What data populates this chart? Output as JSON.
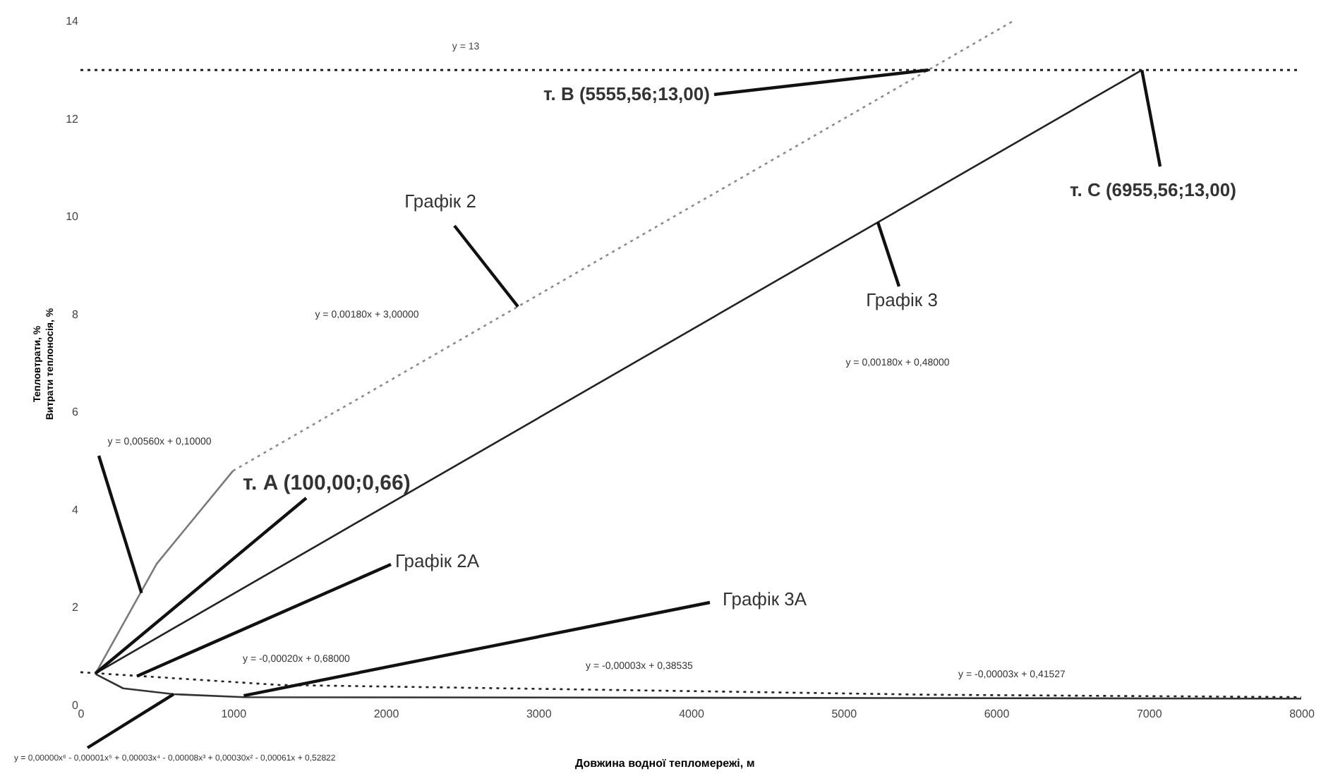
{
  "chart_data": {
    "type": "line",
    "xlabel": "Довжина водної тепломережі, м",
    "ylabel": [
      "Тепловтрати, %",
      "Витрати теплоносія, %"
    ],
    "xlim": [
      0,
      8000
    ],
    "xticks": [
      0,
      1000,
      2000,
      3000,
      4000,
      5000,
      6000,
      7000,
      8000
    ],
    "ylim": [
      0,
      14
    ],
    "yticks": [
      0,
      2,
      4,
      6,
      8,
      10,
      12,
      14
    ],
    "grid": false,
    "marker": "none",
    "series": [
      {
        "color": "#7a7a7a",
        "line_style": "solid",
        "x": [
          100,
          500,
          1000
        ],
        "values": [
          0.66,
          2.9,
          4.8
        ]
      },
      {
        "color": "#8a8a8a",
        "line_style": "dotted",
        "x": [
          1000,
          5555.56,
          6111
        ],
        "values": [
          4.8,
          13,
          14
        ]
      },
      {
        "color": "#222222",
        "line_style": "solid",
        "x": [
          100,
          6955.56
        ],
        "values": [
          0.66,
          13
        ]
      },
      {
        "color": "#222222",
        "line_style": "dotted",
        "x": [
          0,
          100,
          1300,
          5555.56,
          8000
        ],
        "values": [
          0.68,
          0.66,
          0.42,
          0.22,
          0.17
        ]
      },
      {
        "color": "#333333",
        "line_style": "solid",
        "x": [
          100,
          280,
          610,
          1070,
          8000
        ],
        "values": [
          0.64,
          0.35,
          0.23,
          0.17,
          0.14
        ]
      }
    ],
    "ref_lines": [
      {
        "axis": "y",
        "value": 13,
        "label": "y = 13",
        "color": "#222222",
        "line_style": "dotted"
      }
    ],
    "annotations": [
      "y = 0,00180x + 3,00000",
      "y = 0,00180x + 0,48000",
      {
        "text": "y = 0,00560x + 0,10000",
        "x": 400,
        "y": 2.3
      },
      "y = -0,00020x + 0,68000",
      "y = -0,00003x + 0,38535",
      "y = -0,00003x + 0,41527",
      {
        "text": "y = 0,00000x⁶ - 0,00001x⁵ + 0,00003x⁴ - 0,00008x³ + 0,00030x² - 0,00061x + 0,52822",
        "x": 610,
        "y": 0.23
      },
      {
        "text": "Графік 2",
        "x": 2867,
        "y": 8.16
      },
      {
        "text": "т. B (5555,56;13,00)",
        "x": 5555.56,
        "y": 13
      },
      {
        "text": "т. C (6955,56;13,00)",
        "x": 6955.56,
        "y": 13
      },
      {
        "text": "Графік 3",
        "x": 5225,
        "y": 9.89
      },
      {
        "text": "т. A (100,00;0,66)",
        "x": 100,
        "y": 0.66
      },
      {
        "text": "Графік 2А",
        "x": 370,
        "y": 0.6
      },
      {
        "text": "Графік 3А",
        "x": 1070,
        "y": 0.2
      }
    ]
  }
}
